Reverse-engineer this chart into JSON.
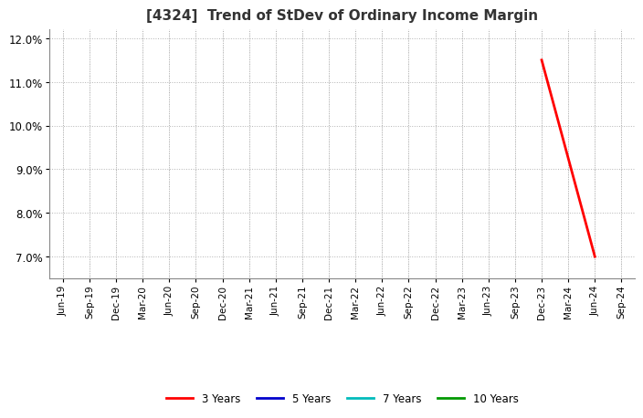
{
  "title": "[4324]  Trend of StDev of Ordinary Income Margin",
  "x_labels": [
    "Jun-19",
    "Sep-19",
    "Dec-19",
    "Mar-20",
    "Jun-20",
    "Sep-20",
    "Dec-20",
    "Mar-21",
    "Jun-21",
    "Sep-21",
    "Dec-21",
    "Mar-22",
    "Jun-22",
    "Sep-22",
    "Dec-22",
    "Mar-23",
    "Jun-23",
    "Sep-23",
    "Dec-23",
    "Mar-24",
    "Jun-24",
    "Sep-24"
  ],
  "series": [
    {
      "name": "3 Years",
      "color": "#FF0000",
      "data_x": [
        "Dec-23",
        "Jun-24"
      ],
      "data_y": [
        11.5,
        7.0
      ]
    },
    {
      "name": "5 Years",
      "color": "#0000CC",
      "data_x": [],
      "data_y": []
    },
    {
      "name": "7 Years",
      "color": "#00BBBB",
      "data_x": [],
      "data_y": []
    },
    {
      "name": "10 Years",
      "color": "#009900",
      "data_x": [],
      "data_y": []
    }
  ],
  "ylim": [
    6.5,
    12.2
  ],
  "yticks": [
    7.0,
    8.0,
    9.0,
    10.0,
    11.0,
    12.0
  ],
  "ytick_labels": [
    "7.0%",
    "8.0%",
    "9.0%",
    "10.0%",
    "11.0%",
    "12.0%"
  ],
  "background_color": "#FFFFFF",
  "plot_bg_color": "#FFFFFF",
  "grid_color": "#AAAAAA",
  "title_fontsize": 11,
  "title_color": "#333333",
  "tick_fontsize": 7.5,
  "ytick_fontsize": 8.5,
  "legend_fontsize": 8.5,
  "line_width": 2.0
}
